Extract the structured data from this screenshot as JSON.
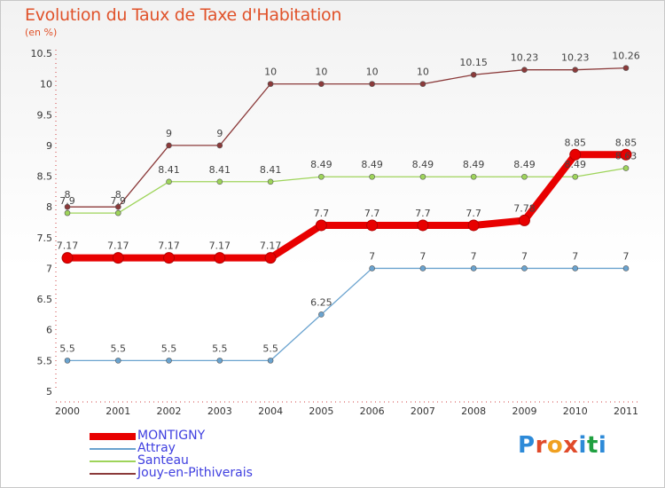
{
  "title": "Evolution du Taux de Taxe d'Habitation",
  "unit_label": "(en %)",
  "logo_text": "Proxiti",
  "logo_colors": [
    "#2d8ad8",
    "#e04a2a",
    "#f0a020",
    "#e04a2a",
    "#2d8ad8",
    "#20a040",
    "#2d8ad8"
  ],
  "chart_data": {
    "type": "line",
    "title": "Evolution du Taux de Taxe d'Habitation",
    "ylabel": "(en %)",
    "xlabel": "",
    "x": [
      "2000",
      "2001",
      "2002",
      "2003",
      "2004",
      "2005",
      "2006",
      "2007",
      "2008",
      "2009",
      "2010",
      "2011"
    ],
    "ylim": [
      5,
      10.5
    ],
    "yticks": [
      "5",
      "5.5",
      "6",
      "6.5",
      "7",
      "7.5",
      "8",
      "8.5",
      "9",
      "9.5",
      "10",
      "10.5"
    ],
    "grid": false,
    "legend_position": "bottom-left",
    "series": [
      {
        "name": "MONTIGNY",
        "color": "#e80000",
        "emphasis": true,
        "values": [
          7.17,
          7.17,
          7.17,
          7.17,
          7.17,
          7.7,
          7.7,
          7.7,
          7.7,
          7.78,
          8.85,
          8.85
        ],
        "labels": [
          "7.17",
          "7.17",
          "7.17",
          "7.17",
          "7.17",
          "7.7",
          "7.7",
          "7.7",
          "7.7",
          "7.78",
          "8.85",
          "8.85"
        ]
      },
      {
        "name": "Attray",
        "color": "#6aa3cf",
        "values": [
          5.5,
          5.5,
          5.5,
          5.5,
          5.5,
          6.25,
          7,
          7,
          7,
          7,
          7,
          7
        ],
        "labels": [
          "5.5",
          "5.5",
          "5.5",
          "5.5",
          "5.5",
          "6.25",
          "7",
          "7",
          "7",
          "7",
          "7",
          "7"
        ]
      },
      {
        "name": "Santeau",
        "color": "#9ed45a",
        "values": [
          7.9,
          7.9,
          8.41,
          8.41,
          8.41,
          8.49,
          8.49,
          8.49,
          8.49,
          8.49,
          8.49,
          8.63
        ],
        "labels": [
          "7.9",
          "7.9",
          "8.41",
          "8.41",
          "8.41",
          "8.49",
          "8.49",
          "8.49",
          "8.49",
          "8.49",
          "8.49",
          "8.63"
        ]
      },
      {
        "name": "Jouy-en-Pithiverais",
        "color": "#8b3a3a",
        "values": [
          8,
          8,
          9,
          9,
          10,
          10,
          10,
          10,
          10.15,
          10.23,
          10.23,
          10.26
        ],
        "labels": [
          "8",
          "8",
          "9",
          "9",
          "10",
          "10",
          "10",
          "10",
          "10.15",
          "10.23",
          "10.23",
          "10.26"
        ]
      }
    ]
  }
}
